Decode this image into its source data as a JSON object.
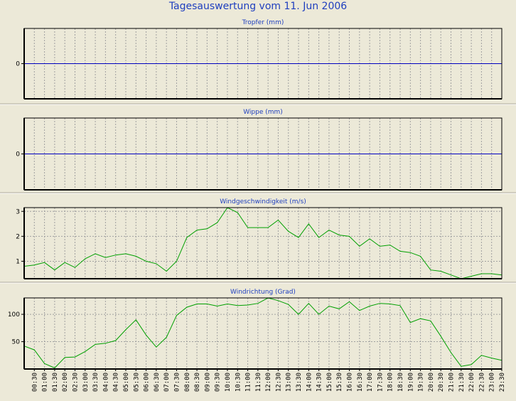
{
  "page": {
    "title": "Tagesauswertung vom 11. Jun 2006"
  },
  "colors": {
    "background": "#ece9d8",
    "title": "#1f3fbf",
    "zero_line": "#0000c0",
    "wind_line": "#00a000",
    "grid": "#a0a0a0",
    "frame": "#000000"
  },
  "time_labels": [
    "00:30",
    "01:00",
    "01:30",
    "02:00",
    "02:30",
    "03:00",
    "03:30",
    "04:00",
    "04:30",
    "05:00",
    "05:30",
    "06:00",
    "06:30",
    "07:00",
    "07:30",
    "08:00",
    "08:30",
    "09:00",
    "09:30",
    "10:00",
    "10:30",
    "11:00",
    "11:30",
    "12:00",
    "12:30",
    "13:00",
    "13:30",
    "14:00",
    "14:30",
    "15:00",
    "15:30",
    "16:00",
    "16:30",
    "17:00",
    "17:30",
    "18:00",
    "18:30",
    "19:00",
    "19:30",
    "20:00",
    "20:30",
    "21:00",
    "21:30",
    "22:00",
    "22:30",
    "23:00",
    "23:30"
  ],
  "chart_data": [
    {
      "type": "line",
      "title": "Tropfer (mm)",
      "ylim": [
        -1,
        1
      ],
      "yticks": [
        0
      ],
      "grid": true,
      "series": [
        {
          "values": [
            0,
            0,
            0,
            0,
            0,
            0,
            0,
            0,
            0,
            0,
            0,
            0,
            0,
            0,
            0,
            0,
            0,
            0,
            0,
            0,
            0,
            0,
            0,
            0,
            0,
            0,
            0,
            0,
            0,
            0,
            0,
            0,
            0,
            0,
            0,
            0,
            0,
            0,
            0,
            0,
            0,
            0,
            0,
            0,
            0,
            0,
            0,
            0
          ]
        }
      ]
    },
    {
      "type": "line",
      "title": "Wippe (mm)",
      "ylim": [
        -1,
        1
      ],
      "yticks": [
        0
      ],
      "grid": true,
      "series": [
        {
          "values": [
            0,
            0,
            0,
            0,
            0,
            0,
            0,
            0,
            0,
            0,
            0,
            0,
            0,
            0,
            0,
            0,
            0,
            0,
            0,
            0,
            0,
            0,
            0,
            0,
            0,
            0,
            0,
            0,
            0,
            0,
            0,
            0,
            0,
            0,
            0,
            0,
            0,
            0,
            0,
            0,
            0,
            0,
            0,
            0,
            0,
            0,
            0,
            0
          ]
        }
      ]
    },
    {
      "type": "line",
      "title": "Windgeschwindigkeit (m/s)",
      "ylim": [
        0.3,
        3.15
      ],
      "yticks": [
        1,
        2,
        3
      ],
      "grid": true,
      "series": [
        {
          "values": [
            0.8,
            0.85,
            0.95,
            0.65,
            0.95,
            0.75,
            1.1,
            1.3,
            1.15,
            1.25,
            1.3,
            1.2,
            1.0,
            0.9,
            0.6,
            1.0,
            1.95,
            2.25,
            2.3,
            2.55,
            3.15,
            2.95,
            2.35,
            2.35,
            2.35,
            2.65,
            2.2,
            1.95,
            2.5,
            1.95,
            2.25,
            2.05,
            2.0,
            1.6,
            1.9,
            1.6,
            1.65,
            1.4,
            1.35,
            1.2,
            0.65,
            0.6,
            0.45,
            0.3,
            0.4,
            0.5,
            0.5,
            0.45
          ]
        }
      ]
    },
    {
      "type": "line",
      "title": "Windrichtung (Grad)",
      "ylim": [
        0,
        130
      ],
      "yticks": [
        50,
        100
      ],
      "grid": true,
      "series": [
        {
          "values": [
            42,
            35,
            10,
            2,
            21,
            22,
            32,
            45,
            47,
            52,
            72,
            90,
            62,
            40,
            58,
            98,
            113,
            119,
            119,
            115,
            119,
            116,
            117,
            120,
            130,
            125,
            118,
            100,
            120,
            100,
            115,
            110,
            123,
            107,
            115,
            120,
            119,
            116,
            85,
            92,
            88,
            60,
            30,
            5,
            8,
            25,
            20,
            16
          ]
        }
      ]
    }
  ]
}
